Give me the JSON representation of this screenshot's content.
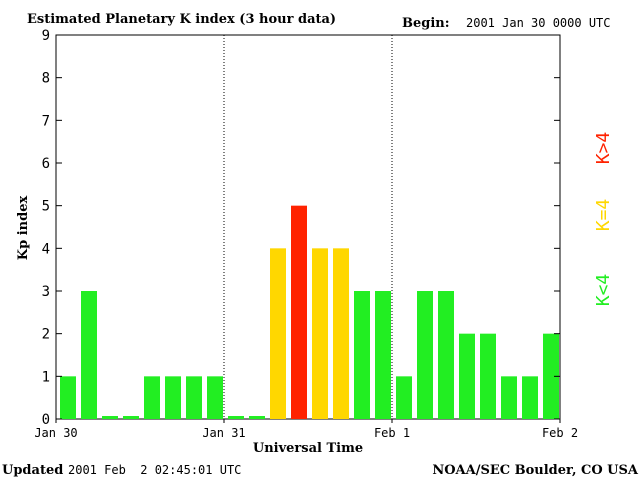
{
  "header": {
    "title": "Estimated Planetary K index (3 hour data)",
    "begin_label": "Begin:",
    "begin_value": "2001 Jan 30 0000 UTC"
  },
  "footer": {
    "updated_label": "Updated",
    "updated_value": "2001 Feb  2 02:45:01 UTC",
    "credit": "NOAA/SEC Boulder, CO USA"
  },
  "colors": {
    "low": "#22ee22",
    "mid": "#ffd700",
    "high": "#ff2200",
    "frame": "#000000",
    "divider": "#000000"
  },
  "legend": {
    "low": "K<4",
    "mid": "K=4",
    "high": "K>4"
  },
  "chart_data": {
    "type": "bar",
    "title": "Estimated Planetary K index (3 hour data)",
    "xlabel": "Universal Time",
    "ylabel": "Kp index",
    "ylim": [
      0,
      9
    ],
    "yticks": [
      "0",
      "1",
      "2",
      "3",
      "4",
      "5",
      "6",
      "7",
      "8",
      "9"
    ],
    "x_ticks": [
      {
        "label": "Jan 30",
        "slot": 0
      },
      {
        "label": "Jan 31",
        "slot": 8
      },
      {
        "label": "Feb 1",
        "slot": 16
      },
      {
        "label": "Feb 2",
        "slot": 24
      }
    ],
    "day_dividers": [
      8,
      16
    ],
    "slots_total": 24,
    "values": [
      1,
      3,
      0.07,
      0.07,
      1,
      1,
      1,
      1,
      0.07,
      0.07,
      4,
      5,
      4,
      4,
      3,
      3,
      1,
      3,
      3,
      2,
      2,
      1,
      1,
      2
    ],
    "grid": false,
    "legend_position": "right"
  }
}
